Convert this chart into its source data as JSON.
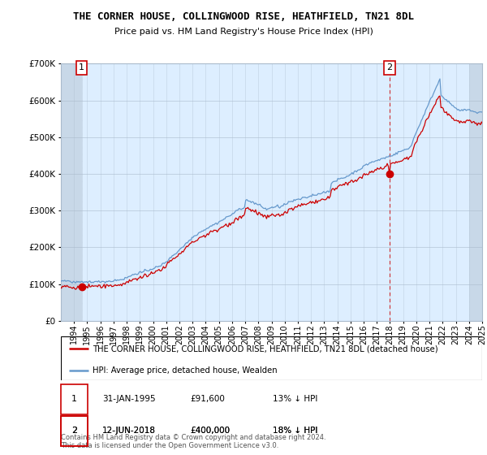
{
  "title": "THE CORNER HOUSE, COLLINGWOOD RISE, HEATHFIELD, TN21 8DL",
  "subtitle": "Price paid vs. HM Land Registry's House Price Index (HPI)",
  "ylim": [
    0,
    700000
  ],
  "yticks": [
    0,
    100000,
    200000,
    300000,
    400000,
    500000,
    600000,
    700000
  ],
  "legend_line1": "THE CORNER HOUSE, COLLINGWOOD RISE, HEATHFIELD, TN21 8DL (detached house)",
  "legend_line2": "HPI: Average price, detached house, Wealden",
  "transaction1_date": "31-JAN-1995",
  "transaction1_price": 91600,
  "transaction1_hpi": "13% ↓ HPI",
  "transaction2_date": "12-JUN-2018",
  "transaction2_price": 400000,
  "transaction2_hpi": "18% ↓ HPI",
  "footer": "Contains HM Land Registry data © Crown copyright and database right 2024.\nThis data is licensed under the Open Government Licence v3.0.",
  "hpi_color": "#6699cc",
  "price_color": "#cc0000",
  "marker_color": "#cc0000",
  "grid_color": "#aabbcc",
  "plot_bg_color": "#ddeeff",
  "background_color": "#ffffff",
  "box_color": "#cc0000",
  "hatch_bg_color": "#c8d8e8",
  "t1_x": 1995.08,
  "t1_y": 91600,
  "t2_x": 2018.45,
  "t2_y": 400000,
  "xlim_left": 1993.5,
  "xlim_right": 2025.5,
  "hatch_right_start": 2024.5
}
